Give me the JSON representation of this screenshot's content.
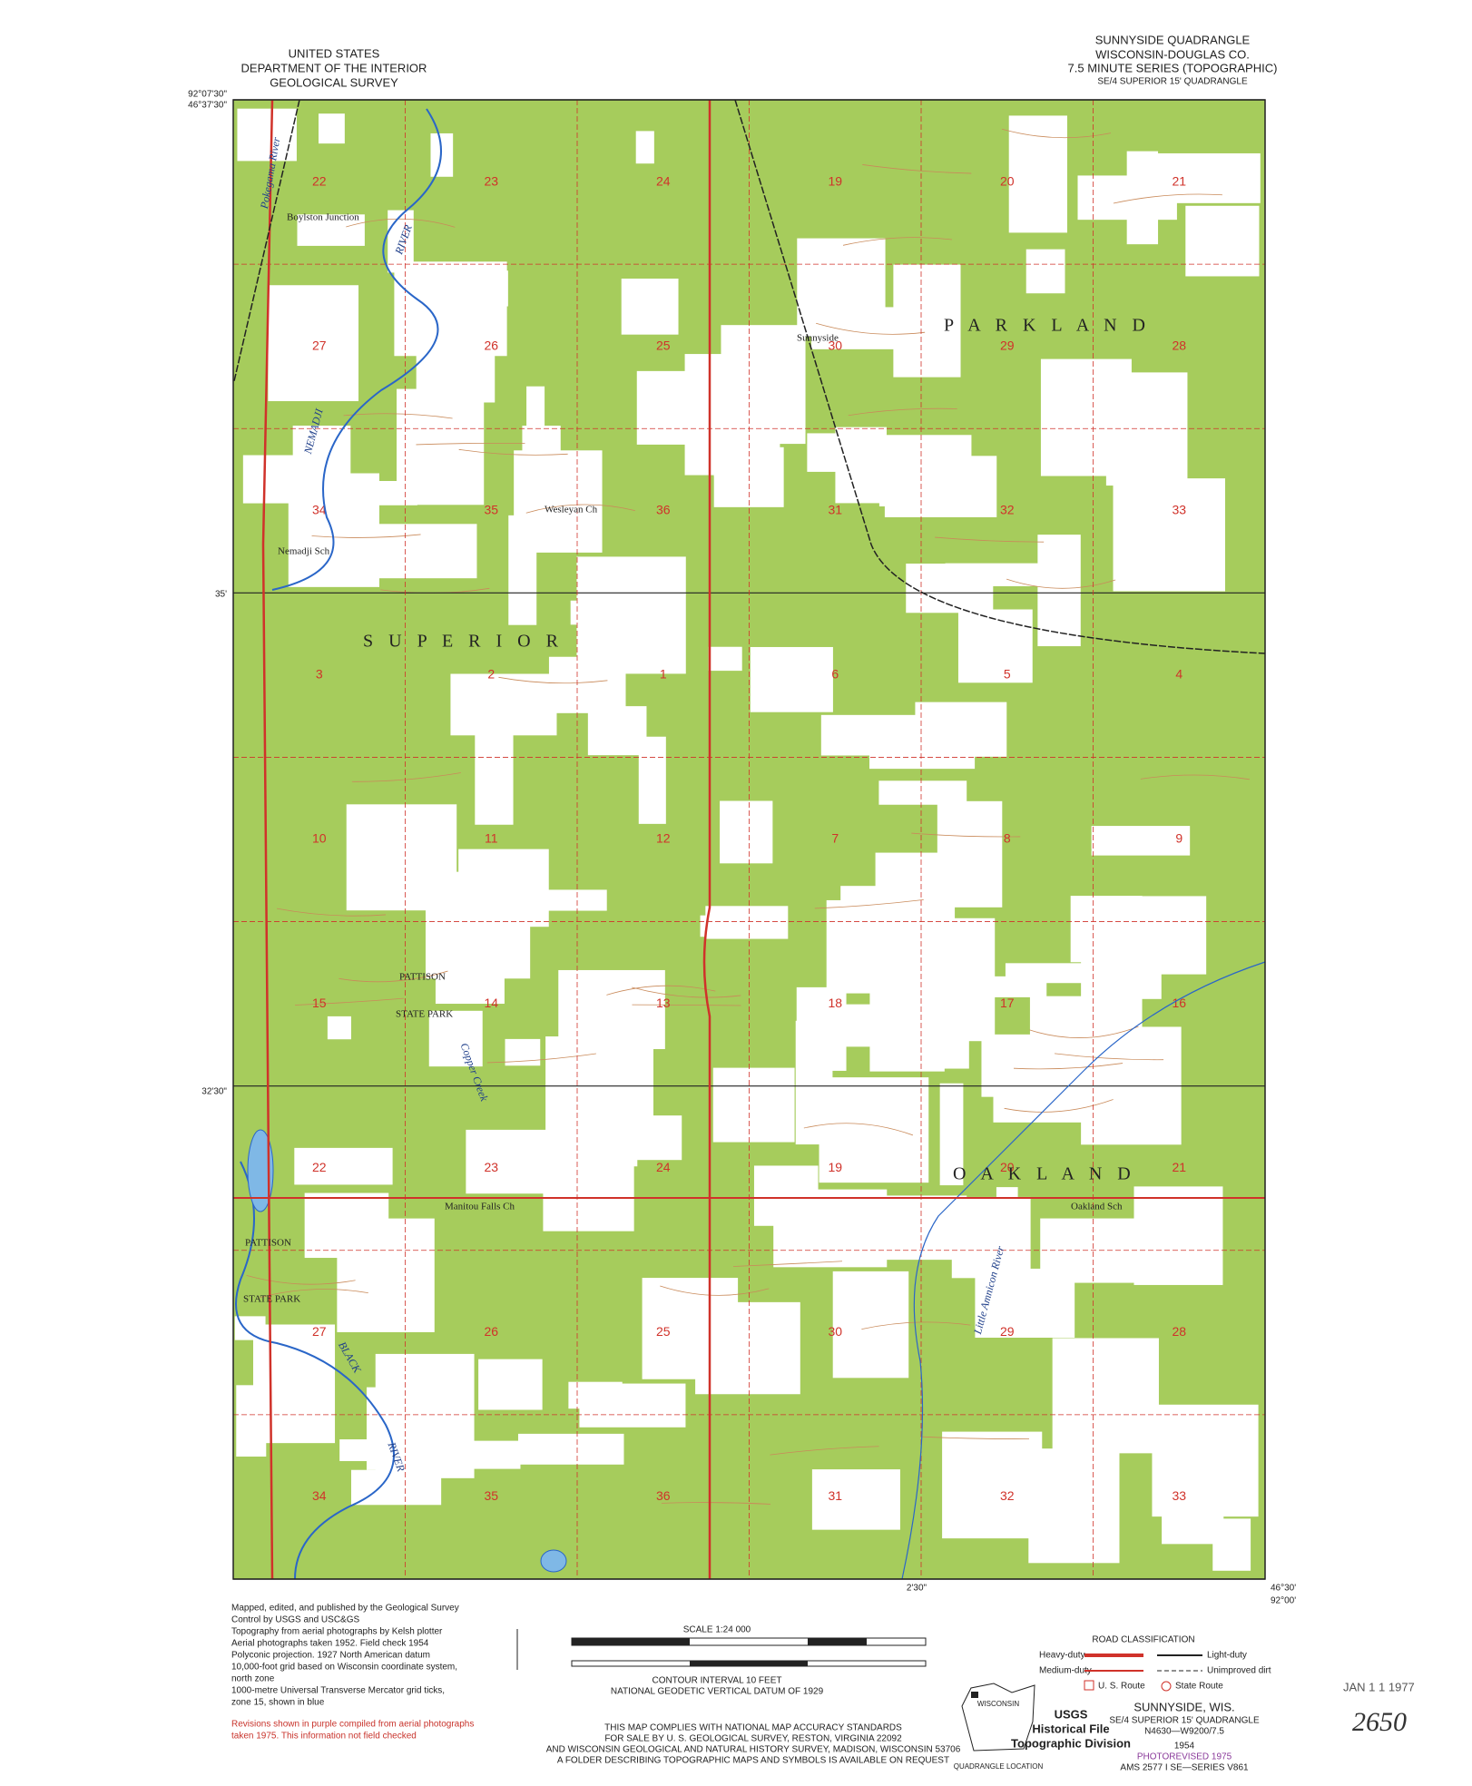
{
  "header": {
    "left": [
      "UNITED STATES",
      "DEPARTMENT OF THE INTERIOR",
      "GEOLOGICAL SURVEY"
    ],
    "right": [
      "SUNNYSIDE QUADRANGLE",
      "WISCONSIN-DOUGLAS CO.",
      "7.5 MINUTE SERIES (TOPOGRAPHIC)",
      "SE/4 SUPERIOR 15' QUADRANGLE"
    ]
  },
  "corners": {
    "nw_lat": "46°37'30\"",
    "nw_lon": "92°07'30\"",
    "se_lon": "92°00'",
    "se_lat": "46°30'",
    "mid_lat": "35'",
    "mid_lat2": "32'30\"",
    "mid_lon": "2'30\""
  },
  "places": [
    "Boylston Junction",
    "Sunnyside",
    "Wesleyan Ch",
    "Nemadji Sch",
    "PATTISON",
    "STATE PARK",
    "Manitou Falls Ch",
    "Oakland Sch",
    "PATTISON",
    "STATE PARK"
  ],
  "townships": [
    "S U P E R I O R",
    "P A R K L A N D",
    "O A K L A N D"
  ],
  "rivers": [
    "NEMADJI",
    "RIVER",
    "Pokegama River",
    "Copper Creek",
    "Little Amnicon River",
    "BLACK",
    "RIVER"
  ],
  "sections": [
    [
      "22",
      "23",
      "24",
      "19",
      "20",
      "21"
    ],
    [
      "27",
      "26",
      "25",
      "30",
      "29",
      "28"
    ],
    [
      "34",
      "35",
      "36",
      "31",
      "32",
      "33"
    ],
    [
      "3",
      "2",
      "1",
      "6",
      "5",
      "4"
    ],
    [
      "10",
      "11",
      "12",
      "7",
      "8",
      "9"
    ],
    [
      "15",
      "14",
      "13",
      "18",
      "17",
      "16"
    ],
    [
      "22",
      "23",
      "24",
      "19",
      "20",
      "21"
    ],
    [
      "27",
      "26",
      "25",
      "30",
      "29",
      "28"
    ],
    [
      "34",
      "35",
      "36",
      "31",
      "32",
      "33"
    ]
  ],
  "footer": {
    "left": [
      "Mapped, edited, and published by the Geological Survey",
      "Control by USGS and USC&GS",
      "Topography from aerial photographs by Kelsh plotter",
      "Aerial photographs taken 1952.  Field check 1954",
      "Polyconic projection.  1927 North American datum",
      "10,000-foot grid based on Wisconsin coordinate system,",
      "north zone",
      "1000-metre Universal Transverse Mercator grid ticks,",
      "zone 15, shown in blue"
    ],
    "revision": [
      "Revisions shown in purple compiled from aerial photographs",
      "taken 1975.  This information not field checked"
    ],
    "center": [
      "SCALE 1:24 000",
      "CONTOUR INTERVAL 10 FEET",
      "NATIONAL GEODETIC VERTICAL DATUM OF 1929",
      "THIS MAP COMPLIES WITH NATIONAL MAP ACCURACY STANDARDS",
      "FOR SALE BY U. S. GEOLOGICAL SURVEY, RESTON, VIRGINIA 22092",
      "AND WISCONSIN GEOLOGICAL AND NATURAL HISTORY SURVEY, MADISON, WISCONSIN 53706",
      "A FOLDER DESCRIBING TOPOGRAPHIC MAPS AND SYMBOLS IS AVAILABLE ON REQUEST"
    ],
    "road_title": "ROAD CLASSIFICATION",
    "roads": [
      "Heavy-duty",
      "Light-duty",
      "Medium-duty",
      "Unimproved dirt",
      "U. S. Route",
      "State Route"
    ],
    "location": [
      "WISCONSIN",
      "QUADRANGLE LOCATION"
    ],
    "stamp": [
      "USGS",
      "Historical File",
      "Topographic Division"
    ],
    "right": [
      "SUNNYSIDE, WIS.",
      "SE/4 SUPERIOR 15' QUADRANGLE",
      "N4630—W9200/7.5",
      "1954",
      "PHOTOREVISED 1975",
      "AMS 2577 I SE—SERIES V861"
    ],
    "date_stamp": "JAN 1 1 1977",
    "handwritten": "2650"
  }
}
